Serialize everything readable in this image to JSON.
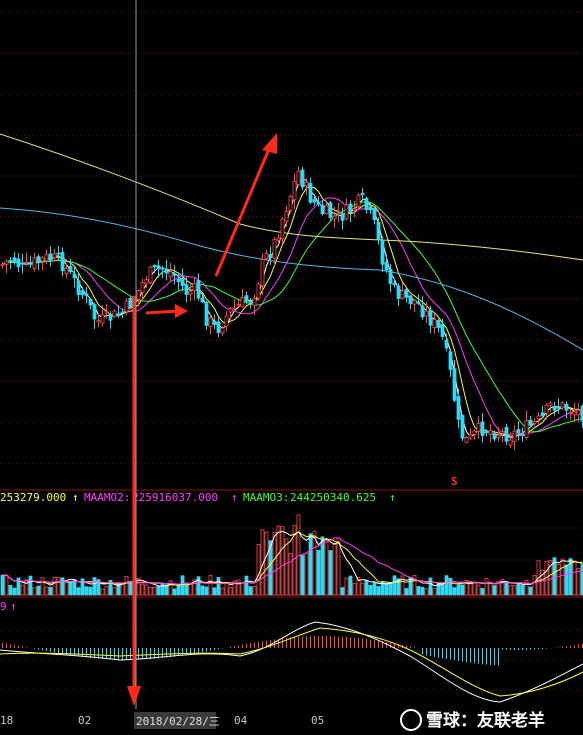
{
  "chart_data": {
    "type": "candlestick",
    "grid": true,
    "vol_indicators": {
      "v1": "253279.000",
      "v1_arrow": "↑",
      "m2_label": "MAAMO2:",
      "m2_value": "225916037.000",
      "m2_arrow": "↑",
      "m3_label": "MAAMO3:",
      "m3_value": "244250340.625",
      "m3_arrow": "↑"
    },
    "macd_indicator": {
      "v": "9",
      "arrow": "↑"
    },
    "x_tick_labels": [
      "18",
      "02",
      "2018/02/28/三",
      "04",
      "05"
    ],
    "sell_marker": "S",
    "watermark": "雪球：友联老羊",
    "colors": {
      "up": "#ff4a4a",
      "down": "#34d7f0",
      "ma5": "#ffffff",
      "ma10": "#ffff3c",
      "ma20": "#ff3cff",
      "ma30": "#3cff3c",
      "ma60": "#5ab4e6",
      "ma120": "#e6e682",
      "arrow": "#ff2a1a",
      "grid": "#7a1010",
      "cursor": "#9a9a9a"
    }
  }
}
